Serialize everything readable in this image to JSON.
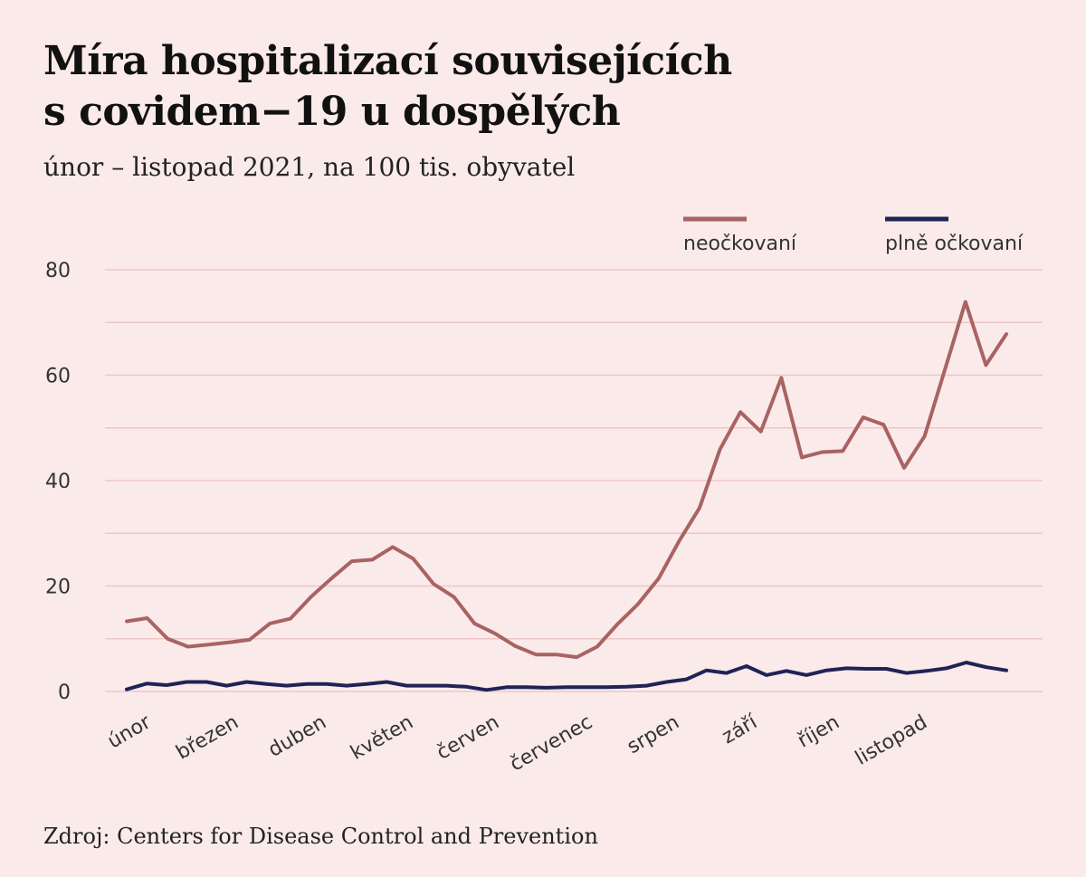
{
  "title_line1": "Míra hospitalizací souvisejících",
  "title_line2": "s covidem−19 u dospělých",
  "subtitle": "únor – listopad 2021, na 100 tis. obyvatel",
  "source": "Zdroj: Centers for Disease Control and Prevention",
  "chart_data": {
    "type": "line",
    "title": "Míra hospitalizací souvisejících s covidem−19 u dospělých",
    "subtitle": "únor – listopad 2021, na 100 tis. obyvatel",
    "xlabel": "",
    "ylabel": "",
    "ylim": [
      0,
      80
    ],
    "yticks": [
      "0",
      "20",
      "40",
      "60",
      "80"
    ],
    "grid": true,
    "legend_position": "top-right",
    "x_month_labels": [
      "únor",
      "březen",
      "duben",
      "květen",
      "červen",
      "červenec",
      "srpen",
      "září",
      "říjen",
      "listopad"
    ],
    "series": [
      {
        "name": "neočkovaní",
        "color": "#a86362",
        "values": [
          13.3,
          13.9,
          10.0,
          8.5,
          8.9,
          9.3,
          9.8,
          12.9,
          13.8,
          17.9,
          21.4,
          24.7,
          25.0,
          27.4,
          25.2,
          20.4,
          17.9,
          12.9,
          11.0,
          8.6,
          7.0,
          7.0,
          6.5,
          8.5,
          12.8,
          16.6,
          21.4,
          28.5,
          34.8,
          45.9,
          53.0,
          49.3,
          59.5,
          44.4,
          45.4,
          45.6,
          52.0,
          50.6,
          42.4,
          48.4,
          61.1,
          73.9,
          61.9,
          67.8
        ]
      },
      {
        "name": "plně očkovaní",
        "color": "#1f2356",
        "values": [
          0.4,
          1.5,
          1.2,
          1.8,
          1.8,
          1.1,
          1.8,
          1.4,
          1.1,
          1.4,
          1.4,
          1.1,
          1.4,
          1.8,
          1.1,
          1.1,
          1.1,
          0.9,
          0.3,
          0.8,
          0.8,
          0.7,
          0.8,
          0.8,
          0.8,
          0.9,
          1.1,
          1.8,
          2.3,
          4.0,
          3.5,
          4.8,
          3.1,
          3.9,
          3.1,
          4.0,
          4.4,
          4.3,
          4.3,
          3.5,
          3.9,
          4.4,
          5.5,
          4.6,
          4.0
        ]
      }
    ]
  }
}
